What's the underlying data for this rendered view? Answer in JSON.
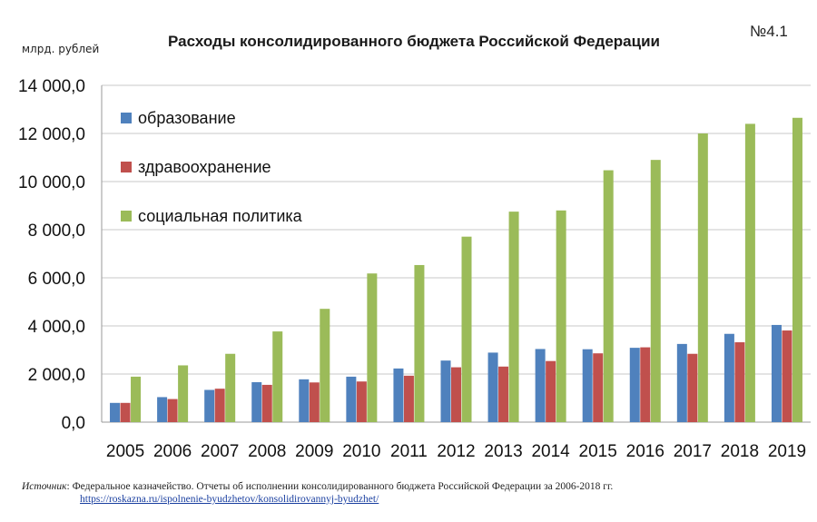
{
  "header": {
    "title": "Расходы консолидированного бюджета Российской Федерации",
    "unit": "млрд. рублей",
    "number": "№4.1"
  },
  "chart_data": {
    "type": "bar",
    "title": "Расходы консолидированного бюджета Российской Федерации",
    "ylabel": "млрд. рублей",
    "ylim": [
      0,
      14000
    ],
    "yticks": [
      "0,0",
      "2 000,0",
      "4 000,0",
      "6 000,0",
      "8 000,0",
      "10 000,0",
      "12 000,0",
      "14 000,0"
    ],
    "grid": true,
    "legend_position": "top-left",
    "categories": [
      "2005",
      "2006",
      "2007",
      "2008",
      "2009",
      "2010",
      "2011",
      "2012",
      "2013",
      "2014",
      "2015",
      "2016",
      "2017",
      "2018",
      "2019"
    ],
    "series": [
      {
        "name": "образование",
        "color": "#4f81bd",
        "values": [
          800,
          1040,
          1340,
          1660,
          1780,
          1890,
          2230,
          2560,
          2890,
          3040,
          3030,
          3090,
          3250,
          3670,
          4040
        ]
      },
      {
        "name": "здравоохранение",
        "color": "#c0504d",
        "values": [
          800,
          960,
          1390,
          1550,
          1650,
          1690,
          1930,
          2280,
          2310,
          2540,
          2860,
          3110,
          2840,
          3320,
          3810
        ]
      },
      {
        "name": "социальная политика",
        "color": "#9bbb59",
        "values": [
          1890,
          2360,
          2840,
          3770,
          4710,
          6180,
          6530,
          7710,
          8750,
          8800,
          10470,
          10900,
          12000,
          12400,
          12650
        ]
      }
    ]
  },
  "footer": {
    "source_label": "Источник",
    "source_text": ": Федеральное казначейство. Отчеты об исполнении консолидированного бюджета Российской Федерации за 2006-2018 гг.",
    "link": "https://roskazna.ru/ispolnenie-byudzhetov/konsolidirovannyj-byudzhet/"
  }
}
